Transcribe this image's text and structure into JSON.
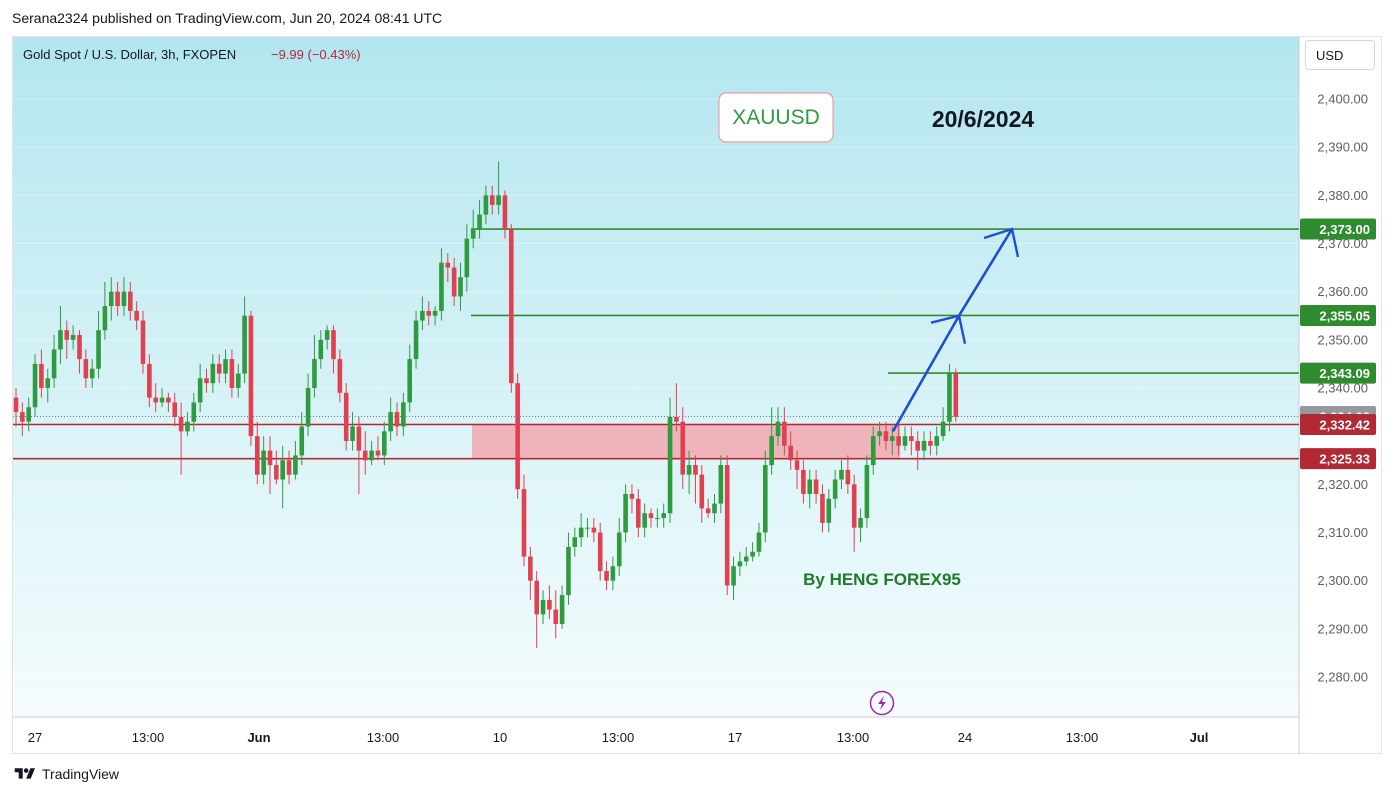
{
  "header": {
    "published_by": "Serana2324 published on TradingView.com, Jun 20, 2024 08:41 UTC"
  },
  "legend": {
    "symbol_line": "Gold Spot / U.S. Dollar, 3h, FXOPEN",
    "change": "−9.99 (−0.43%)"
  },
  "currency_button": "USD",
  "annotations": {
    "symbol_box": "XAUUSD",
    "date": "20/6/2024",
    "author": "By HENG FOREX95"
  },
  "footer": {
    "brand": "TradingView"
  },
  "colors": {
    "up": "#26a69a",
    "down": "#ef5350",
    "candle_up": "#2e9b3f",
    "candle_down": "#e0404f",
    "zone_fill": "#f2a7b0",
    "zone_line": "#b22833",
    "target_line": "#2e8b2e",
    "arrow": "#1f4fd1",
    "bg_top": "#b6e7f0",
    "bg_bottom": "#f4fcfd"
  },
  "chart_data": {
    "type": "candlestick",
    "symbol": "XAUUSD",
    "timeframe": "3h",
    "ylim": [
      2272,
      2404
    ],
    "y_ticks": [
      2280,
      2290,
      2300,
      2310,
      2320,
      2330,
      2340,
      2350,
      2360,
      2370,
      2380,
      2390,
      2400
    ],
    "y_tick_labels": [
      "2,280.00",
      "2,290.00",
      "2,300.00",
      "2,310.00",
      "2,320.00",
      "",
      "2,340.00",
      "2,350.00",
      "2,360.00",
      "2,370.00",
      "2,380.00",
      "2,390.00",
      "2,400.00"
    ],
    "x_ticks": [
      "27",
      "13:00",
      "Jun",
      "13:00",
      "10",
      "13:00",
      "17",
      "13:00",
      "24",
      "13:00",
      "Jul"
    ],
    "price_labels": [
      {
        "value": 2373.0,
        "text": "2,373.00",
        "kind": "target"
      },
      {
        "value": 2355.05,
        "text": "2,355.05",
        "kind": "target"
      },
      {
        "value": 2343.09,
        "text": "2,343.09",
        "kind": "target"
      },
      {
        "value": 2334.08,
        "text": "2,334.08",
        "kind": "last"
      },
      {
        "value": 2332.42,
        "text": "2,332.42",
        "kind": "zone"
      },
      {
        "value": 2325.33,
        "text": "2,325.33",
        "kind": "zone"
      }
    ],
    "zone": {
      "high": 2332.42,
      "low": 2325.33
    },
    "targets": [
      2343.09,
      2355.05,
      2373.0
    ],
    "candles": [
      [
        2338,
        2335,
        2340,
        2332
      ],
      [
        2335,
        2333,
        2337,
        2330
      ],
      [
        2333,
        2336,
        2338,
        2331
      ],
      [
        2336,
        2345,
        2347,
        2334
      ],
      [
        2345,
        2340,
        2348,
        2338
      ],
      [
        2340,
        2342,
        2344,
        2337
      ],
      [
        2342,
        2348,
        2351,
        2340
      ],
      [
        2348,
        2352,
        2357,
        2345
      ],
      [
        2352,
        2350,
        2354,
        2346
      ],
      [
        2350,
        2351,
        2353,
        2348
      ],
      [
        2351,
        2346,
        2352,
        2343
      ],
      [
        2346,
        2342,
        2348,
        2340
      ],
      [
        2342,
        2344,
        2346,
        2340
      ],
      [
        2344,
        2352,
        2356,
        2342
      ],
      [
        2352,
        2357,
        2362,
        2350
      ],
      [
        2357,
        2360,
        2363,
        2354
      ],
      [
        2360,
        2357,
        2362,
        2355
      ],
      [
        2357,
        2360,
        2363,
        2355
      ],
      [
        2360,
        2356,
        2362,
        2354
      ],
      [
        2356,
        2354,
        2358,
        2352
      ],
      [
        2354,
        2345,
        2356,
        2343
      ],
      [
        2345,
        2338,
        2347,
        2336
      ],
      [
        2338,
        2337,
        2341,
        2335
      ],
      [
        2337,
        2338,
        2340,
        2336
      ],
      [
        2338,
        2337,
        2339,
        2335
      ],
      [
        2337,
        2334,
        2339,
        2332
      ],
      [
        2334,
        2331,
        2337,
        2322
      ],
      [
        2331,
        2333,
        2335,
        2330
      ],
      [
        2333,
        2337,
        2339,
        2331
      ],
      [
        2337,
        2342,
        2345,
        2335
      ],
      [
        2342,
        2341,
        2344,
        2339
      ],
      [
        2341,
        2345,
        2347,
        2339
      ],
      [
        2345,
        2343,
        2347,
        2341
      ],
      [
        2343,
        2346,
        2348,
        2341
      ],
      [
        2346,
        2340,
        2348,
        2338
      ],
      [
        2340,
        2343,
        2345,
        2338
      ],
      [
        2343,
        2355,
        2359,
        2341
      ],
      [
        2355,
        2330,
        2356,
        2328
      ],
      [
        2330,
        2322,
        2333,
        2320
      ],
      [
        2322,
        2327,
        2330,
        2320
      ],
      [
        2327,
        2324,
        2330,
        2318
      ],
      [
        2324,
        2321,
        2327,
        2320
      ],
      [
        2321,
        2325,
        2328,
        2315
      ],
      [
        2325,
        2322,
        2327,
        2320
      ],
      [
        2322,
        2326,
        2329,
        2321
      ],
      [
        2326,
        2332,
        2335,
        2324
      ],
      [
        2332,
        2340,
        2343,
        2330
      ],
      [
        2340,
        2346,
        2351,
        2338
      ],
      [
        2346,
        2350,
        2352,
        2344
      ],
      [
        2350,
        2352,
        2353,
        2348
      ],
      [
        2352,
        2346,
        2353,
        2343
      ],
      [
        2346,
        2339,
        2348,
        2337
      ],
      [
        2339,
        2329,
        2341,
        2327
      ],
      [
        2329,
        2332,
        2335,
        2327
      ],
      [
        2332,
        2327,
        2334,
        2318
      ],
      [
        2327,
        2325,
        2331,
        2322
      ],
      [
        2325,
        2327,
        2329,
        2324
      ],
      [
        2327,
        2326,
        2330,
        2325
      ],
      [
        2326,
        2331,
        2333,
        2324
      ],
      [
        2331,
        2335,
        2338,
        2329
      ],
      [
        2335,
        2332,
        2337,
        2330
      ],
      [
        2332,
        2337,
        2339,
        2330
      ],
      [
        2337,
        2346,
        2349,
        2335
      ],
      [
        2346,
        2354,
        2356,
        2344
      ],
      [
        2354,
        2356,
        2359,
        2352
      ],
      [
        2356,
        2355,
        2358,
        2353
      ],
      [
        2355,
        2356,
        2357,
        2353
      ],
      [
        2356,
        2366,
        2369,
        2354
      ],
      [
        2366,
        2365,
        2368,
        2362
      ],
      [
        2365,
        2359,
        2367,
        2357
      ],
      [
        2359,
        2363,
        2366,
        2356
      ],
      [
        2363,
        2371,
        2374,
        2360
      ],
      [
        2371,
        2373,
        2377,
        2369
      ],
      [
        2373,
        2376,
        2379,
        2371
      ],
      [
        2376,
        2380,
        2382,
        2374
      ],
      [
        2380,
        2378,
        2382,
        2376
      ],
      [
        2378,
        2380,
        2387,
        2376
      ],
      [
        2380,
        2373,
        2381,
        2371
      ],
      [
        2373,
        2341,
        2374,
        2339
      ],
      [
        2341,
        2319,
        2343,
        2317
      ],
      [
        2319,
        2305,
        2322,
        2303
      ],
      [
        2305,
        2300,
        2307,
        2296
      ],
      [
        2300,
        2293,
        2302,
        2286
      ],
      [
        2293,
        2296,
        2298,
        2291
      ],
      [
        2296,
        2294,
        2299,
        2292
      ],
      [
        2294,
        2291,
        2298,
        2288
      ],
      [
        2291,
        2297,
        2299,
        2290
      ],
      [
        2297,
        2307,
        2310,
        2295
      ],
      [
        2307,
        2309,
        2311,
        2305
      ],
      [
        2309,
        2311,
        2314,
        2307
      ],
      [
        2311,
        2311,
        2313,
        2309
      ],
      [
        2311,
        2310,
        2313,
        2308
      ],
      [
        2310,
        2302,
        2312,
        2300
      ],
      [
        2302,
        2300,
        2304,
        2298
      ],
      [
        2300,
        2303,
        2305,
        2298
      ],
      [
        2303,
        2310,
        2313,
        2301
      ],
      [
        2310,
        2318,
        2320,
        2308
      ],
      [
        2318,
        2317,
        2320,
        2314
      ],
      [
        2317,
        2311,
        2319,
        2309
      ],
      [
        2311,
        2314,
        2316,
        2309
      ],
      [
        2314,
        2313,
        2315,
        2311
      ],
      [
        2313,
        2313,
        2315,
        2311
      ],
      [
        2313,
        2314,
        2316,
        2311
      ],
      [
        2314,
        2334,
        2338,
        2312
      ],
      [
        2334,
        2333,
        2341,
        2331
      ],
      [
        2333,
        2322,
        2336,
        2319
      ],
      [
        2322,
        2324,
        2327,
        2318
      ],
      [
        2324,
        2322,
        2326,
        2316
      ],
      [
        2322,
        2315,
        2324,
        2312
      ],
      [
        2315,
        2314,
        2317,
        2313
      ],
      [
        2314,
        2316,
        2318,
        2312
      ],
      [
        2316,
        2324,
        2326,
        2314
      ],
      [
        2324,
        2299,
        2326,
        2297
      ],
      [
        2299,
        2303,
        2305,
        2296
      ],
      [
        2303,
        2304,
        2306,
        2301
      ],
      [
        2304,
        2305,
        2307,
        2303
      ],
      [
        2305,
        2306,
        2308,
        2304
      ],
      [
        2306,
        2310,
        2312,
        2305
      ],
      [
        2310,
        2324,
        2327,
        2308
      ],
      [
        2324,
        2330,
        2336,
        2322
      ],
      [
        2330,
        2333,
        2336,
        2328
      ],
      [
        2333,
        2328,
        2336,
        2326
      ],
      [
        2328,
        2325,
        2331,
        2323
      ],
      [
        2325,
        2323,
        2327,
        2319
      ],
      [
        2323,
        2318,
        2325,
        2316
      ],
      [
        2318,
        2321,
        2323,
        2315
      ],
      [
        2321,
        2318,
        2323,
        2316
      ],
      [
        2318,
        2312,
        2320,
        2310
      ],
      [
        2312,
        2317,
        2319,
        2310
      ],
      [
        2317,
        2321,
        2323,
        2315
      ],
      [
        2321,
        2323,
        2325,
        2319
      ],
      [
        2323,
        2320,
        2326,
        2318
      ],
      [
        2320,
        2311,
        2322,
        2306
      ],
      [
        2311,
        2313,
        2315,
        2308
      ],
      [
        2313,
        2324,
        2326,
        2311
      ],
      [
        2324,
        2330,
        2332,
        2322
      ],
      [
        2330,
        2331,
        2333,
        2328
      ],
      [
        2331,
        2329,
        2333,
        2327
      ],
      [
        2329,
        2330,
        2332,
        2326
      ],
      [
        2330,
        2328,
        2333,
        2326
      ],
      [
        2328,
        2330,
        2332,
        2327
      ],
      [
        2330,
        2329,
        2332,
        2326
      ],
      [
        2329,
        2327,
        2331,
        2323
      ],
      [
        2327,
        2329,
        2331,
        2325
      ],
      [
        2329,
        2328,
        2331,
        2326
      ],
      [
        2328,
        2330,
        2332,
        2326
      ],
      [
        2330,
        2333,
        2336,
        2329
      ],
      [
        2333,
        2343,
        2345,
        2331
      ],
      [
        2343,
        2334,
        2344,
        2333
      ]
    ]
  }
}
